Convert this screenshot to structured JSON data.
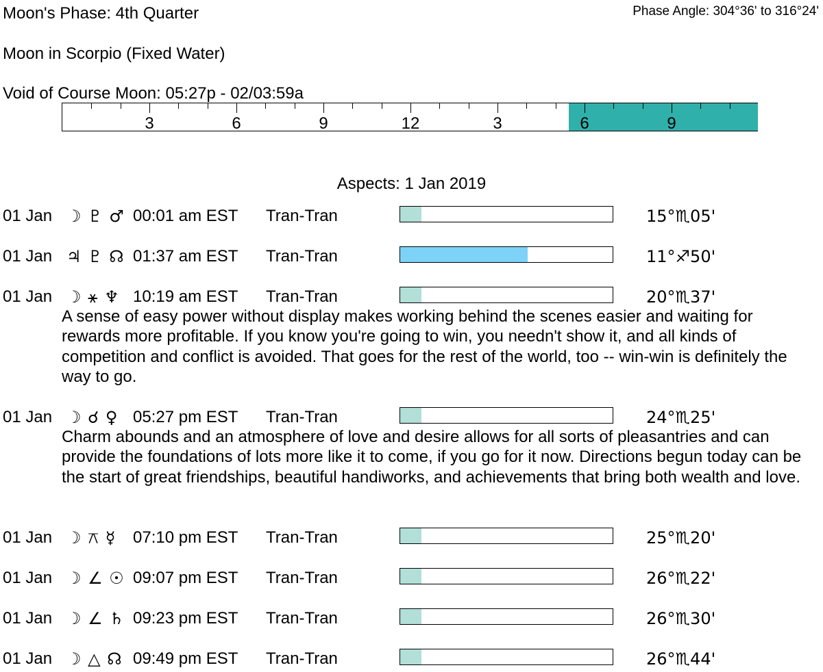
{
  "header": {
    "moon_phase": "Moon's Phase:  4th Quarter",
    "phase_angle": "Phase Angle:  304°36' to 316°24'",
    "moon_sign": "Moon in Scorpio   (Fixed Water)",
    "void_of_course": "Void of Course Moon:  05:27p - 02/03:59a"
  },
  "timeline": {
    "labels": [
      "3",
      "6",
      "9",
      "12",
      "3",
      "6",
      "9"
    ],
    "fill_start_hour": 17.45,
    "fill_end_hour": 24,
    "fill_color": "#30b0aa"
  },
  "aspects_title": "Aspects: 1 Jan 2019",
  "aspects": [
    {
      "date": "01 Jan",
      "symbols": "☽ ♇ ♂",
      "time": "00:01 am EST",
      "kind": "Tran-Tran",
      "strength": 0.1,
      "bar_color": "#b2dfd8",
      "degree": "15°♏05'",
      "description": ""
    },
    {
      "date": "01 Jan",
      "symbols": "♃ ♇ ☊",
      "time": "01:37 am EST",
      "kind": "Tran-Tran",
      "strength": 0.6,
      "bar_color": "#7dd3f7",
      "degree": "11°♐50'",
      "description": ""
    },
    {
      "date": "01 Jan",
      "symbols": "☽ ⚹ ♆",
      "time": "10:19 am EST",
      "kind": "Tran-Tran",
      "strength": 0.1,
      "bar_color": "#b2dfd8",
      "degree": "20°♏37'",
      "description": "A sense of easy power without display makes working behind the scenes easier and waiting for rewards more profitable. If you know you're going to win, you needn't show it, and all kinds of competition and conflict is avoided. That goes for the rest of the world, too -- win-win is definitely the way to go."
    },
    {
      "date": "01 Jan",
      "symbols": "☽ ☌ ♀",
      "time": "05:27 pm EST",
      "kind": "Tran-Tran",
      "strength": 0.1,
      "bar_color": "#b2dfd8",
      "degree": "24°♏25'",
      "description": "Charm abounds and an atmosphere of love and desire allows for all sorts of pleasantries and can provide the foundations of lots more like it to come, if you go for it now. Directions begun today can be the start of great friendships, beautiful handiworks, and achievements that bring both wealth and love."
    },
    {
      "date": "01 Jan",
      "symbols": "☽ ⚻ ☿",
      "time": "07:10 pm EST",
      "kind": "Tran-Tran",
      "strength": 0.1,
      "bar_color": "#b2dfd8",
      "degree": "25°♏20'",
      "description": ""
    },
    {
      "date": "01 Jan",
      "symbols": "☽ ∠ ☉",
      "time": "09:07 pm EST",
      "kind": "Tran-Tran",
      "strength": 0.1,
      "bar_color": "#b2dfd8",
      "degree": "26°♏22'",
      "description": ""
    },
    {
      "date": "01 Jan",
      "symbols": "☽ ∠ ♄",
      "time": "09:23 pm EST",
      "kind": "Tran-Tran",
      "strength": 0.1,
      "bar_color": "#b2dfd8",
      "degree": "26°♏30'",
      "description": ""
    },
    {
      "date": "01 Jan",
      "symbols": "☽ △ ☊",
      "time": "09:49 pm EST",
      "kind": "Tran-Tran",
      "strength": 0.1,
      "bar_color": "#b2dfd8",
      "degree": "26°♏44'",
      "description": ""
    }
  ]
}
